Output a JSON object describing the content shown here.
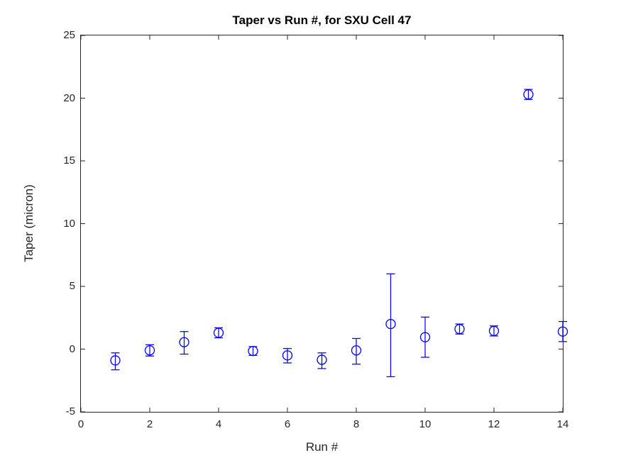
{
  "figure": {
    "background": "#ffffff"
  },
  "chart_data": {
    "type": "scatter",
    "subtype": "errorbar",
    "title": "Taper vs Run #, for SXU Cell 47",
    "xlabel": "Run #",
    "ylabel": "Taper (micron)",
    "xlim": [
      0,
      14
    ],
    "ylim": [
      -5,
      25
    ],
    "x_ticks": [
      0,
      2,
      4,
      6,
      8,
      10,
      12,
      14
    ],
    "y_ticks": [
      -5,
      0,
      5,
      10,
      15,
      20,
      25
    ],
    "grid": false,
    "legend": null,
    "box": true,
    "marker": "open-circle",
    "colors": {
      "marker": "#0000ff",
      "axis": "#262626",
      "tick_label": "#262626",
      "title": "#000000"
    },
    "series": [
      {
        "name": "Taper",
        "x": [
          1,
          2,
          3,
          4,
          5,
          6,
          7,
          8,
          9,
          10,
          11,
          12,
          13,
          14
        ],
        "y": [
          -0.9,
          -0.1,
          0.55,
          1.3,
          -0.15,
          -0.5,
          -0.85,
          -0.1,
          2.0,
          0.95,
          1.6,
          1.45,
          20.3,
          1.4
        ],
        "err_lo": [
          -1.65,
          -0.55,
          -0.4,
          0.9,
          -0.5,
          -1.1,
          -1.55,
          -1.2,
          -2.2,
          -0.65,
          1.2,
          1.05,
          19.9,
          0.6
        ],
        "err_hi": [
          -0.3,
          0.35,
          1.4,
          1.7,
          0.2,
          0.05,
          -0.3,
          0.85,
          6.0,
          2.55,
          2.0,
          1.85,
          20.7,
          2.2
        ]
      }
    ]
  }
}
